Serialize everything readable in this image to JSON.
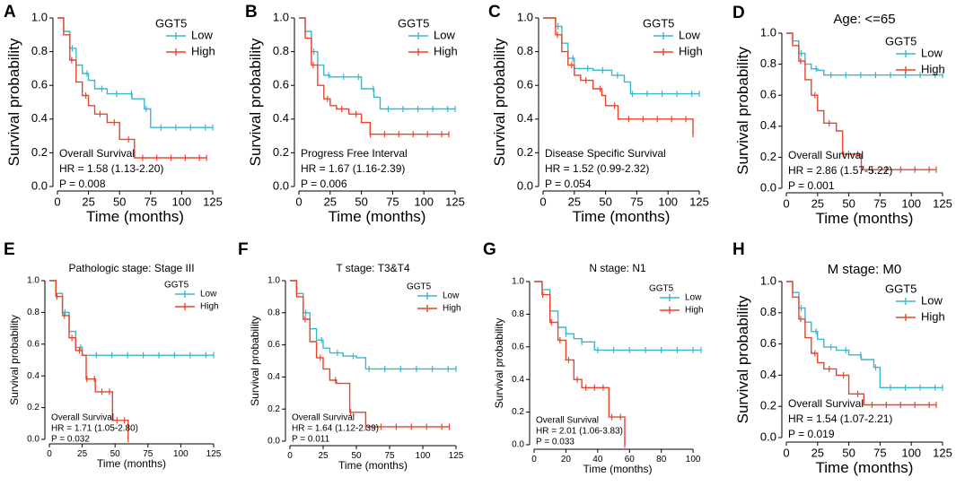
{
  "figure": {
    "title": ""
  },
  "styles": {
    "low_color": "#3bb7cc",
    "high_color": "#e8452b",
    "axis_color": "#000000",
    "text_color": "#000000"
  },
  "chart_data": [
    {
      "panel": "A",
      "type": "line",
      "title": "",
      "xlabel": "Time (months)",
      "ylabel": "Survival probability",
      "xlim": [
        0,
        125
      ],
      "ylim": [
        0,
        1
      ],
      "xticks": [
        0,
        25,
        50,
        75,
        100,
        125
      ],
      "yticks": [
        0.0,
        0.2,
        0.4,
        0.6,
        0.8,
        1.0
      ],
      "legend_title": "GGT5",
      "legend_position": "top-right",
      "annotation": [
        "Overall Survival",
        "HR = 1.58 (1.13-2.20)",
        "P = 0.008"
      ],
      "series": [
        {
          "name": "Low",
          "color": "#3bb7cc",
          "x": [
            0,
            5,
            10,
            15,
            20,
            25,
            30,
            40,
            50,
            60,
            70,
            75,
            125
          ],
          "y": [
            1.0,
            0.92,
            0.82,
            0.72,
            0.67,
            0.63,
            0.58,
            0.55,
            0.55,
            0.52,
            0.46,
            0.35,
            0.35
          ]
        },
        {
          "name": "High",
          "color": "#e8452b",
          "x": [
            0,
            5,
            10,
            15,
            20,
            25,
            30,
            40,
            50,
            60,
            62,
            120
          ],
          "y": [
            1.0,
            0.9,
            0.75,
            0.62,
            0.54,
            0.48,
            0.43,
            0.38,
            0.28,
            0.28,
            0.17,
            0.17
          ]
        }
      ]
    },
    {
      "panel": "B",
      "type": "line",
      "title": "",
      "xlabel": "Time (months)",
      "ylabel": "Survival probability",
      "xlim": [
        0,
        125
      ],
      "ylim": [
        0,
        1
      ],
      "xticks": [
        0,
        25,
        50,
        75,
        100,
        125
      ],
      "yticks": [
        0.0,
        0.2,
        0.4,
        0.6,
        0.8,
        1.0
      ],
      "legend_title": "GGT5",
      "legend_position": "top-right",
      "annotation": [
        "Progress Free Interval",
        "HR = 1.67 (1.16-2.39)",
        "P = 0.006"
      ],
      "series": [
        {
          "name": "Low",
          "color": "#3bb7cc",
          "x": [
            0,
            5,
            10,
            15,
            20,
            25,
            40,
            50,
            60,
            65,
            125
          ],
          "y": [
            1.0,
            0.92,
            0.8,
            0.72,
            0.66,
            0.65,
            0.65,
            0.58,
            0.53,
            0.46,
            0.46
          ]
        },
        {
          "name": "High",
          "color": "#e8452b",
          "x": [
            0,
            5,
            10,
            15,
            20,
            25,
            30,
            40,
            50,
            57,
            120
          ],
          "y": [
            1.0,
            0.88,
            0.72,
            0.6,
            0.52,
            0.48,
            0.46,
            0.43,
            0.38,
            0.31,
            0.31
          ]
        }
      ]
    },
    {
      "panel": "C",
      "type": "line",
      "title": "",
      "xlabel": "Time (months)",
      "ylabel": "Survival probability",
      "xlim": [
        0,
        125
      ],
      "ylim": [
        0,
        1
      ],
      "xticks": [
        0,
        25,
        50,
        75,
        100,
        125
      ],
      "yticks": [
        0.0,
        0.2,
        0.4,
        0.6,
        0.8,
        1.0
      ],
      "legend_title": "GGT5",
      "legend_position": "top-right",
      "annotation": [
        "Disease Specific Survival",
        "HR = 1.52 (0.99-2.32)",
        "P = 0.054"
      ],
      "series": [
        {
          "name": "Low",
          "color": "#3bb7cc",
          "x": [
            0,
            10,
            15,
            20,
            25,
            40,
            55,
            65,
            70,
            125
          ],
          "y": [
            1.0,
            0.95,
            0.85,
            0.76,
            0.7,
            0.69,
            0.66,
            0.62,
            0.55,
            0.55
          ]
        },
        {
          "name": "High",
          "color": "#e8452b",
          "x": [
            0,
            10,
            15,
            20,
            25,
            30,
            40,
            47,
            50,
            60,
            120
          ],
          "y": [
            1.0,
            0.9,
            0.8,
            0.72,
            0.66,
            0.63,
            0.58,
            0.54,
            0.48,
            0.4,
            0.31
          ]
        }
      ]
    },
    {
      "panel": "D",
      "type": "line",
      "title": "Age: <=65",
      "xlabel": "Time (months)",
      "ylabel": "Survival probability",
      "xlim": [
        0,
        125
      ],
      "ylim": [
        0,
        1
      ],
      "xticks": [
        0,
        25,
        50,
        75,
        100,
        125
      ],
      "yticks": [
        0.0,
        0.2,
        0.4,
        0.6,
        0.8,
        1.0
      ],
      "legend_title": "GGT5",
      "legend_position": "top-right",
      "annotation": [
        "Overall Survival",
        "HR = 2.86 (1.57-5.22)",
        "P = 0.001"
      ],
      "series": [
        {
          "name": "Low",
          "color": "#3bb7cc",
          "x": [
            0,
            5,
            10,
            15,
            20,
            25,
            30,
            125
          ],
          "y": [
            1.0,
            0.95,
            0.87,
            0.8,
            0.77,
            0.76,
            0.73,
            0.73
          ]
        },
        {
          "name": "High",
          "color": "#e8452b",
          "x": [
            0,
            5,
            10,
            15,
            20,
            25,
            30,
            40,
            45,
            60,
            120
          ],
          "y": [
            1.0,
            0.92,
            0.82,
            0.7,
            0.6,
            0.5,
            0.42,
            0.37,
            0.22,
            0.12,
            0.12
          ]
        }
      ]
    },
    {
      "panel": "E",
      "type": "line",
      "title": "Pathologic stage: Stage III",
      "xlabel": "Time (months)",
      "ylabel": "Survival probability",
      "xlim": [
        0,
        125
      ],
      "ylim": [
        0,
        1
      ],
      "xticks": [
        0,
        25,
        50,
        75,
        100,
        125
      ],
      "yticks": [
        0.0,
        0.2,
        0.4,
        0.6,
        0.8,
        1.0
      ],
      "legend_title": "GGT5",
      "legend_position": "top-right",
      "annotation": [
        "Overall Survival",
        "HR = 1.71 (1.05-2.80)",
        "P = 0.032"
      ],
      "series": [
        {
          "name": "Low",
          "color": "#3bb7cc",
          "x": [
            0,
            5,
            10,
            15,
            20,
            25,
            125
          ],
          "y": [
            1.0,
            0.92,
            0.8,
            0.68,
            0.58,
            0.53,
            0.53
          ]
        },
        {
          "name": "High",
          "color": "#e8452b",
          "x": [
            0,
            5,
            10,
            15,
            20,
            25,
            28,
            35,
            48,
            60
          ],
          "y": [
            1.0,
            0.9,
            0.78,
            0.64,
            0.56,
            0.53,
            0.38,
            0.3,
            0.12,
            0.0
          ]
        }
      ]
    },
    {
      "panel": "F",
      "type": "line",
      "title": "T stage: T3&T4",
      "xlabel": "Time (months)",
      "ylabel": "Survival probability",
      "xlim": [
        0,
        125
      ],
      "ylim": [
        0,
        1
      ],
      "xticks": [
        0,
        25,
        50,
        75,
        100,
        125
      ],
      "yticks": [
        0.0,
        0.2,
        0.4,
        0.6,
        0.8,
        1.0
      ],
      "legend_title": "GGT5",
      "legend_position": "top-right",
      "annotation": [
        "Overall Survival",
        "HR = 1.64 (1.12-2.39)",
        "P = 0.011"
      ],
      "series": [
        {
          "name": "Low",
          "color": "#3bb7cc",
          "x": [
            0,
            5,
            10,
            15,
            20,
            25,
            30,
            40,
            50,
            57,
            125
          ],
          "y": [
            1.0,
            0.92,
            0.8,
            0.7,
            0.63,
            0.58,
            0.55,
            0.53,
            0.52,
            0.45,
            0.45
          ]
        },
        {
          "name": "High",
          "color": "#e8452b",
          "x": [
            0,
            5,
            10,
            15,
            20,
            25,
            30,
            35,
            45,
            57,
            120
          ],
          "y": [
            1.0,
            0.9,
            0.76,
            0.62,
            0.52,
            0.45,
            0.38,
            0.36,
            0.18,
            0.09,
            0.09
          ]
        }
      ]
    },
    {
      "panel": "G",
      "type": "line",
      "title": "N stage: N1",
      "xlabel": "Time (months)",
      "ylabel": "Survival probability",
      "xlim": [
        0,
        105
      ],
      "ylim": [
        0,
        1
      ],
      "xticks": [
        0,
        20,
        40,
        60,
        80,
        100
      ],
      "yticks": [
        0.0,
        0.2,
        0.4,
        0.6,
        0.8,
        1.0
      ],
      "legend_title": "GGT5",
      "legend_position": "top-right",
      "annotation": [
        "Overall Survival",
        "HR = 2.01 (1.06-3.83)",
        "P = 0.033"
      ],
      "series": [
        {
          "name": "Low",
          "color": "#3bb7cc",
          "x": [
            0,
            5,
            10,
            15,
            20,
            25,
            30,
            38,
            105
          ],
          "y": [
            1.0,
            0.95,
            0.82,
            0.72,
            0.68,
            0.65,
            0.63,
            0.58,
            0.58
          ]
        },
        {
          "name": "High",
          "color": "#e8452b",
          "x": [
            0,
            5,
            10,
            15,
            20,
            25,
            30,
            47,
            57
          ],
          "y": [
            1.0,
            0.92,
            0.75,
            0.64,
            0.52,
            0.4,
            0.35,
            0.17,
            0.0
          ]
        }
      ]
    },
    {
      "panel": "H",
      "type": "line",
      "title": "M stage: M0",
      "xlabel": "Time (months)",
      "ylabel": "Survival probability",
      "xlim": [
        0,
        125
      ],
      "ylim": [
        0,
        1
      ],
      "xticks": [
        0,
        25,
        50,
        75,
        100,
        125
      ],
      "yticks": [
        0.0,
        0.2,
        0.4,
        0.6,
        0.8,
        1.0
      ],
      "legend_title": "GGT5",
      "legend_position": "top-right",
      "annotation": [
        "Overall Survival",
        "HR = 1.54 (1.07-2.21)",
        "P = 0.019"
      ],
      "series": [
        {
          "name": "Low",
          "color": "#3bb7cc",
          "x": [
            0,
            5,
            10,
            15,
            20,
            25,
            30,
            40,
            50,
            60,
            70,
            75,
            125
          ],
          "y": [
            1.0,
            0.93,
            0.83,
            0.74,
            0.68,
            0.63,
            0.58,
            0.56,
            0.53,
            0.5,
            0.45,
            0.32,
            0.32
          ]
        },
        {
          "name": "High",
          "color": "#e8452b",
          "x": [
            0,
            5,
            10,
            15,
            20,
            25,
            30,
            40,
            50,
            60,
            62,
            120
          ],
          "y": [
            1.0,
            0.9,
            0.76,
            0.64,
            0.54,
            0.48,
            0.44,
            0.4,
            0.28,
            0.28,
            0.21,
            0.21
          ]
        }
      ]
    }
  ]
}
